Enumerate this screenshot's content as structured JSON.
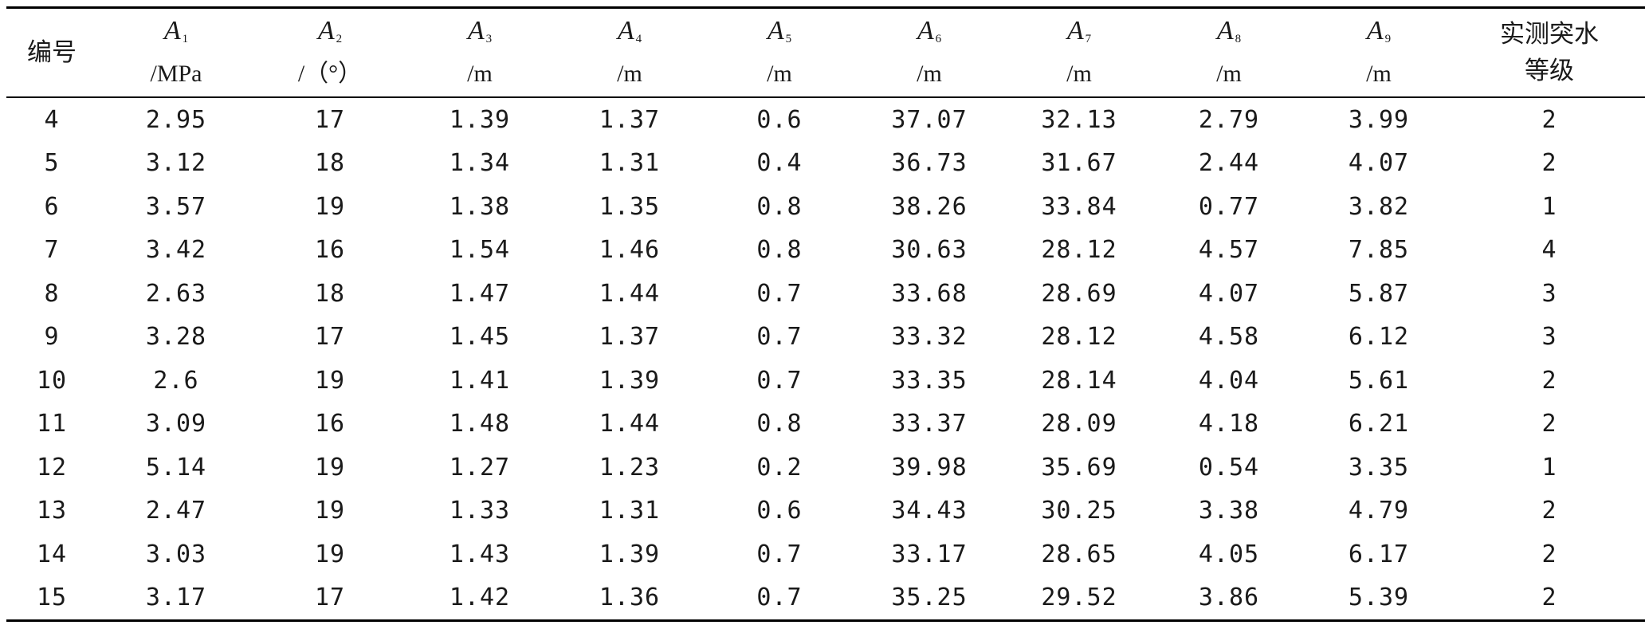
{
  "table": {
    "headers": [
      {
        "line1": "编号",
        "line2": "",
        "type": "cn"
      },
      {
        "sym": "A",
        "sub": "1",
        "unit": "/MPa",
        "type": "var"
      },
      {
        "sym": "A",
        "sub": "2",
        "unit": "/（°）",
        "type": "var"
      },
      {
        "sym": "A",
        "sub": "3",
        "unit": "/m",
        "type": "var"
      },
      {
        "sym": "A",
        "sub": "4",
        "unit": "/m",
        "type": "var"
      },
      {
        "sym": "A",
        "sub": "5",
        "unit": "/m",
        "type": "var"
      },
      {
        "sym": "A",
        "sub": "6",
        "unit": "/m",
        "type": "var"
      },
      {
        "sym": "A",
        "sub": "7",
        "unit": "/m",
        "type": "var"
      },
      {
        "sym": "A",
        "sub": "8",
        "unit": "/m",
        "type": "var"
      },
      {
        "sym": "A",
        "sub": "9",
        "unit": "/m",
        "type": "var"
      },
      {
        "line1": "实测突水",
        "line2": "等级",
        "type": "cn"
      }
    ],
    "rows": [
      [
        "4",
        "2.95",
        "17",
        "1.39",
        "1.37",
        "0.6",
        "37.07",
        "32.13",
        "2.79",
        "3.99",
        "2"
      ],
      [
        "5",
        "3.12",
        "18",
        "1.34",
        "1.31",
        "0.4",
        "36.73",
        "31.67",
        "2.44",
        "4.07",
        "2"
      ],
      [
        "6",
        "3.57",
        "19",
        "1.38",
        "1.35",
        "0.8",
        "38.26",
        "33.84",
        "0.77",
        "3.82",
        "1"
      ],
      [
        "7",
        "3.42",
        "16",
        "1.54",
        "1.46",
        "0.8",
        "30.63",
        "28.12",
        "4.57",
        "7.85",
        "4"
      ],
      [
        "8",
        "2.63",
        "18",
        "1.47",
        "1.44",
        "0.7",
        "33.68",
        "28.69",
        "4.07",
        "5.87",
        "3"
      ],
      [
        "9",
        "3.28",
        "17",
        "1.45",
        "1.37",
        "0.7",
        "33.32",
        "28.12",
        "4.58",
        "6.12",
        "3"
      ],
      [
        "10",
        "2.6",
        "19",
        "1.41",
        "1.39",
        "0.7",
        "33.35",
        "28.14",
        "4.04",
        "5.61",
        "2"
      ],
      [
        "11",
        "3.09",
        "16",
        "1.48",
        "1.44",
        "0.8",
        "33.37",
        "28.09",
        "4.18",
        "6.21",
        "2"
      ],
      [
        "12",
        "5.14",
        "19",
        "1.27",
        "1.23",
        "0.2",
        "39.98",
        "35.69",
        "0.54",
        "3.35",
        "1"
      ],
      [
        "13",
        "2.47",
        "19",
        "1.33",
        "1.31",
        "0.6",
        "34.43",
        "30.25",
        "3.38",
        "4.79",
        "2"
      ],
      [
        "14",
        "3.03",
        "19",
        "1.43",
        "1.39",
        "0.7",
        "33.17",
        "28.65",
        "4.05",
        "6.17",
        "2"
      ],
      [
        "15",
        "3.17",
        "17",
        "1.42",
        "1.36",
        "0.7",
        "35.25",
        "29.52",
        "3.86",
        "5.39",
        "2"
      ]
    ]
  }
}
